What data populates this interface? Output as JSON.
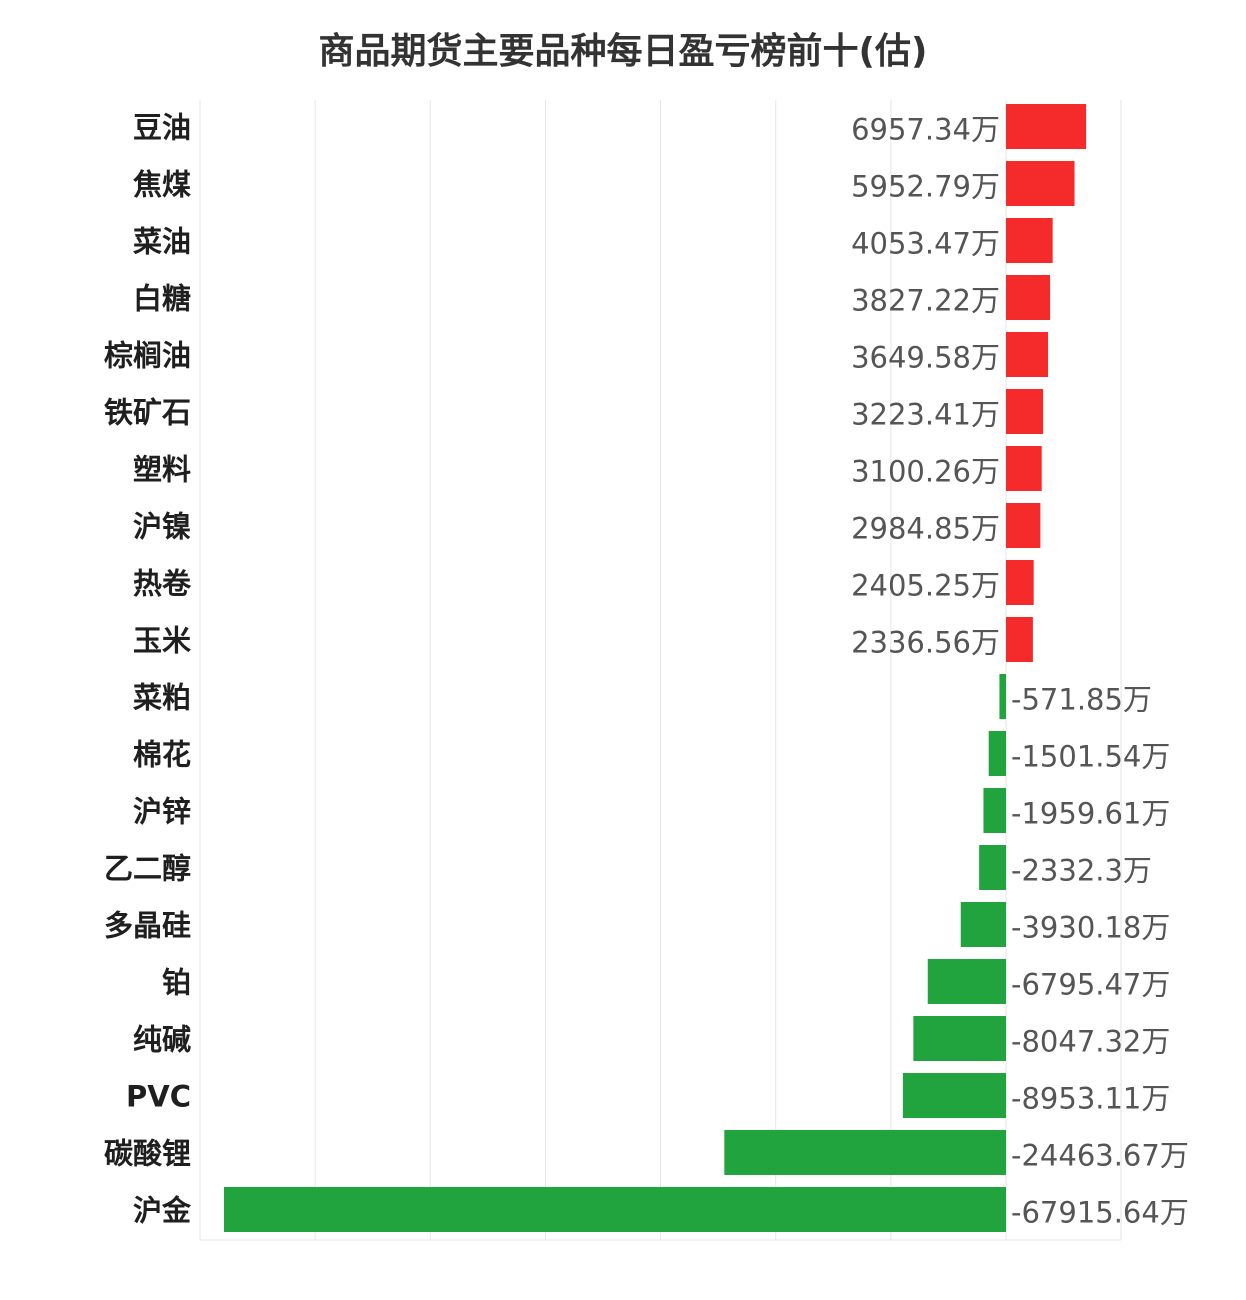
{
  "chart_data": {
    "type": "bar",
    "orientation": "horizontal",
    "title": "商品期货主要品种每日盈亏榜前十(估)",
    "unit_suffix": "万",
    "xlim": [
      -70000,
      10000
    ],
    "grid": true,
    "colors": {
      "positive": "#f52a2a",
      "negative": "#21a33d"
    },
    "categories": [
      "豆油",
      "焦煤",
      "菜油",
      "白糖",
      "棕榈油",
      "铁矿石",
      "塑料",
      "沪镍",
      "热卷",
      "玉米",
      "菜粕",
      "棉花",
      "沪锌",
      "乙二醇",
      "多晶硅",
      "铂",
      "纯碱",
      "PVC",
      "碳酸锂",
      "沪金"
    ],
    "values": [
      6957.34,
      5952.79,
      4053.47,
      3827.22,
      3649.58,
      3223.41,
      3100.26,
      2984.85,
      2405.25,
      2336.56,
      -571.85,
      -1501.54,
      -1959.61,
      -2332.3,
      -3930.18,
      -6795.47,
      -8047.32,
      -8953.11,
      -24463.67,
      -67915.64
    ],
    "value_labels": [
      "6957.34万",
      "5952.79万",
      "4053.47万",
      "3827.22万",
      "3649.58万",
      "3223.41万",
      "3100.26万",
      "2984.85万",
      "2405.25万",
      "2336.56万",
      "-571.85万",
      "-1501.54万",
      "-1959.61万",
      "-2332.3万",
      "-3930.18万",
      "-6795.47万",
      "-8047.32万",
      "-8953.11万",
      "-24463.67万",
      "-67915.64万"
    ]
  }
}
